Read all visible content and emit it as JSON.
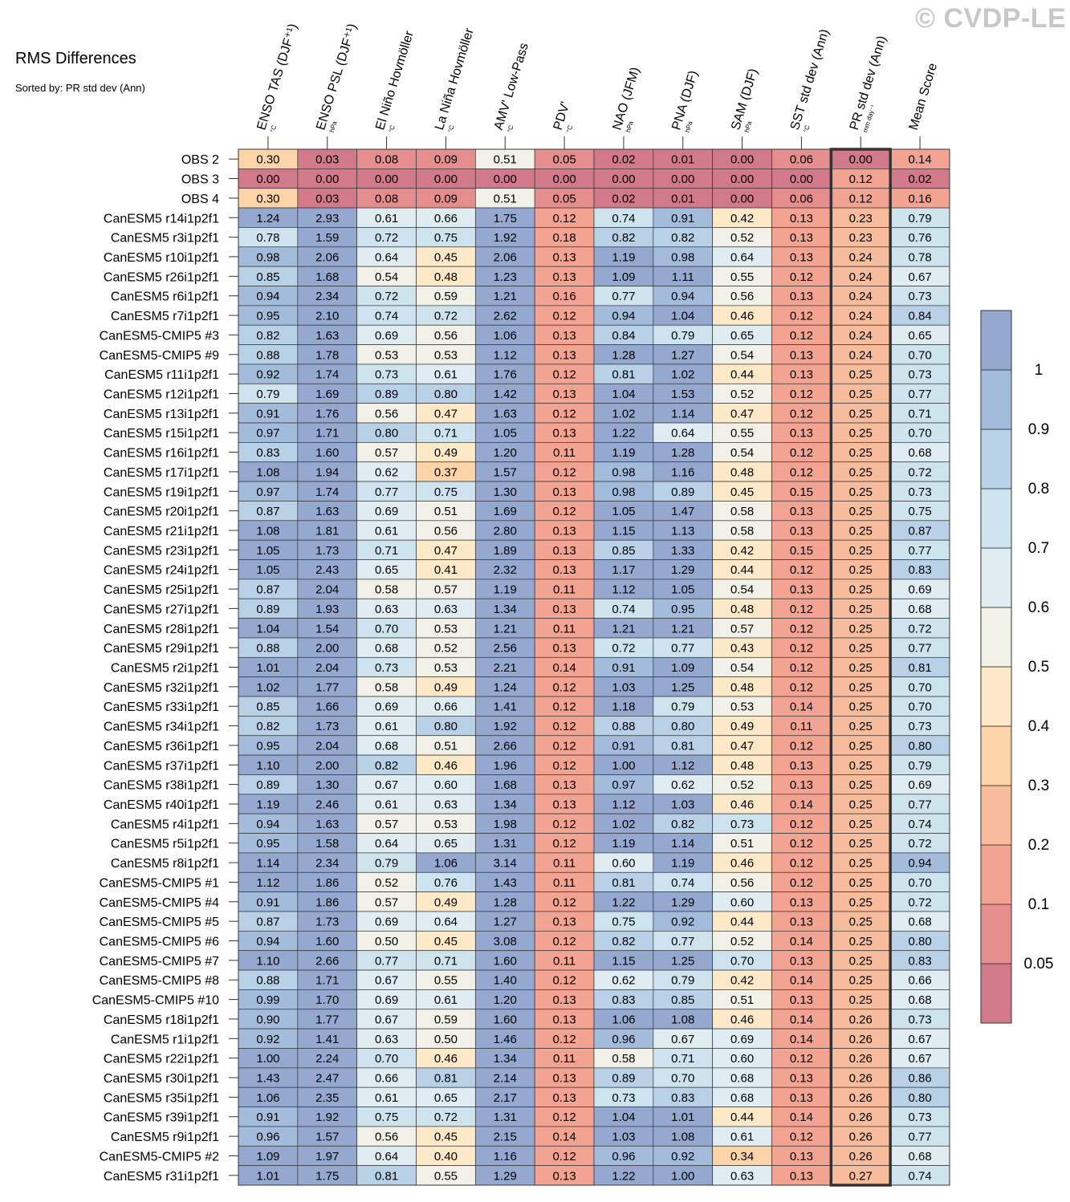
{
  "watermark": "© CVDP-LE",
  "title": "RMS Differences",
  "subtitle": "Sorted by: PR std dev (Ann)",
  "chart_data": {
    "type": "heatmap",
    "columns": [
      {
        "label": "ENSO TAS (DJF⁺¹)",
        "unit": "°C"
      },
      {
        "label": "ENSO PSL (DJF⁺¹)",
        "unit": "hPa"
      },
      {
        "label": "El Niño Hovmöller",
        "unit": "°C"
      },
      {
        "label": "La Niña Hovmöller",
        "unit": "°C"
      },
      {
        "label": "AMV' Low-Pass",
        "unit": "°C"
      },
      {
        "label": "PDV'",
        "unit": "°C"
      },
      {
        "label": "NAO (JFM)",
        "unit": "hPa"
      },
      {
        "label": "PNA (DJF)",
        "unit": "hPa"
      },
      {
        "label": "SAM (DJF)",
        "unit": "hPa"
      },
      {
        "label": "SST std dev (Ann)",
        "unit": "°C"
      },
      {
        "label": "PR std dev (Ann)",
        "unit": "mm day⁻¹"
      },
      {
        "label": "Mean Score",
        "unit": ""
      }
    ],
    "highlight_column": 10,
    "rows": [
      {
        "name": "OBS 2",
        "values": [
          "0.30",
          "0.03",
          "0.08",
          "0.09",
          "0.51",
          "0.05",
          "0.02",
          "0.01",
          "0.00",
          "0.06",
          "0.00",
          "0.14"
        ]
      },
      {
        "name": "OBS 3",
        "values": [
          "0.00",
          "0.00",
          "0.00",
          "0.00",
          "0.00",
          "0.00",
          "0.00",
          "0.00",
          "0.00",
          "0.00",
          "0.12",
          "0.02"
        ]
      },
      {
        "name": "OBS 4",
        "values": [
          "0.30",
          "0.03",
          "0.08",
          "0.09",
          "0.51",
          "0.05",
          "0.02",
          "0.01",
          "0.00",
          "0.06",
          "0.12",
          "0.16"
        ]
      },
      {
        "name": "CanESM5 r14i1p2f1",
        "values": [
          "1.24",
          "2.93",
          "0.61",
          "0.66",
          "1.75",
          "0.12",
          "0.74",
          "0.91",
          "0.42",
          "0.13",
          "0.23",
          "0.79"
        ]
      },
      {
        "name": "CanESM5 r3i1p2f1",
        "values": [
          "0.78",
          "1.59",
          "0.72",
          "0.75",
          "1.92",
          "0.18",
          "0.82",
          "0.82",
          "0.52",
          "0.13",
          "0.23",
          "0.76"
        ]
      },
      {
        "name": "CanESM5 r10i1p2f1",
        "values": [
          "0.98",
          "2.06",
          "0.64",
          "0.45",
          "2.06",
          "0.13",
          "1.19",
          "0.98",
          "0.64",
          "0.13",
          "0.24",
          "0.78"
        ]
      },
      {
        "name": "CanESM5 r26i1p2f1",
        "values": [
          "0.85",
          "1.68",
          "0.54",
          "0.48",
          "1.23",
          "0.13",
          "1.09",
          "1.11",
          "0.55",
          "0.12",
          "0.24",
          "0.67"
        ]
      },
      {
        "name": "CanESM5 r6i1p2f1",
        "values": [
          "0.94",
          "2.34",
          "0.72",
          "0.59",
          "1.21",
          "0.16",
          "0.77",
          "0.94",
          "0.56",
          "0.13",
          "0.24",
          "0.73"
        ]
      },
      {
        "name": "CanESM5 r7i1p2f1",
        "values": [
          "0.95",
          "2.10",
          "0.74",
          "0.72",
          "2.62",
          "0.12",
          "0.94",
          "1.04",
          "0.46",
          "0.12",
          "0.24",
          "0.84"
        ]
      },
      {
        "name": "CanESM5-CMIP5 #3",
        "values": [
          "0.82",
          "1.63",
          "0.69",
          "0.56",
          "1.06",
          "0.13",
          "0.84",
          "0.79",
          "0.65",
          "0.12",
          "0.24",
          "0.65"
        ]
      },
      {
        "name": "CanESM5-CMIP5 #9",
        "values": [
          "0.88",
          "1.78",
          "0.53",
          "0.53",
          "1.12",
          "0.13",
          "1.28",
          "1.27",
          "0.54",
          "0.13",
          "0.24",
          "0.70"
        ]
      },
      {
        "name": "CanESM5 r11i1p2f1",
        "values": [
          "0.92",
          "1.74",
          "0.73",
          "0.61",
          "1.76",
          "0.12",
          "0.81",
          "1.02",
          "0.44",
          "0.13",
          "0.25",
          "0.73"
        ]
      },
      {
        "name": "CanESM5 r12i1p2f1",
        "values": [
          "0.79",
          "1.69",
          "0.89",
          "0.80",
          "1.42",
          "0.13",
          "1.04",
          "1.53",
          "0.52",
          "0.12",
          "0.25",
          "0.77"
        ]
      },
      {
        "name": "CanESM5 r13i1p2f1",
        "values": [
          "0.91",
          "1.76",
          "0.56",
          "0.47",
          "1.63",
          "0.12",
          "1.02",
          "1.14",
          "0.47",
          "0.12",
          "0.25",
          "0.71"
        ]
      },
      {
        "name": "CanESM5 r15i1p2f1",
        "values": [
          "0.97",
          "1.71",
          "0.80",
          "0.71",
          "1.05",
          "0.13",
          "1.22",
          "0.64",
          "0.55",
          "0.13",
          "0.25",
          "0.70"
        ]
      },
      {
        "name": "CanESM5 r16i1p2f1",
        "values": [
          "0.83",
          "1.60",
          "0.57",
          "0.49",
          "1.20",
          "0.11",
          "1.19",
          "1.28",
          "0.54",
          "0.12",
          "0.25",
          "0.68"
        ]
      },
      {
        "name": "CanESM5 r17i1p2f1",
        "values": [
          "1.08",
          "1.94",
          "0.62",
          "0.37",
          "1.57",
          "0.12",
          "0.98",
          "1.16",
          "0.48",
          "0.12",
          "0.25",
          "0.72"
        ]
      },
      {
        "name": "CanESM5 r19i1p2f1",
        "values": [
          "0.97",
          "1.74",
          "0.77",
          "0.75",
          "1.30",
          "0.13",
          "0.98",
          "0.89",
          "0.45",
          "0.15",
          "0.25",
          "0.73"
        ]
      },
      {
        "name": "CanESM5 r20i1p2f1",
        "values": [
          "0.87",
          "1.63",
          "0.69",
          "0.51",
          "1.69",
          "0.12",
          "1.05",
          "1.47",
          "0.58",
          "0.13",
          "0.25",
          "0.75"
        ]
      },
      {
        "name": "CanESM5 r21i1p2f1",
        "values": [
          "1.08",
          "1.81",
          "0.61",
          "0.56",
          "2.80",
          "0.13",
          "1.15",
          "1.13",
          "0.58",
          "0.13",
          "0.25",
          "0.87"
        ]
      },
      {
        "name": "CanESM5 r23i1p2f1",
        "values": [
          "1.05",
          "1.73",
          "0.71",
          "0.47",
          "1.89",
          "0.13",
          "0.85",
          "1.33",
          "0.42",
          "0.15",
          "0.25",
          "0.77"
        ]
      },
      {
        "name": "CanESM5 r24i1p2f1",
        "values": [
          "1.05",
          "2.43",
          "0.65",
          "0.41",
          "2.32",
          "0.13",
          "1.17",
          "1.29",
          "0.44",
          "0.12",
          "0.25",
          "0.83"
        ]
      },
      {
        "name": "CanESM5 r25i1p2f1",
        "values": [
          "0.87",
          "2.04",
          "0.58",
          "0.57",
          "1.19",
          "0.11",
          "1.12",
          "1.05",
          "0.54",
          "0.13",
          "0.25",
          "0.69"
        ]
      },
      {
        "name": "CanESM5 r27i1p2f1",
        "values": [
          "0.89",
          "1.93",
          "0.63",
          "0.63",
          "1.34",
          "0.13",
          "0.74",
          "0.95",
          "0.48",
          "0.12",
          "0.25",
          "0.68"
        ]
      },
      {
        "name": "CanESM5 r28i1p2f1",
        "values": [
          "1.04",
          "1.54",
          "0.70",
          "0.53",
          "1.21",
          "0.11",
          "1.21",
          "1.21",
          "0.57",
          "0.12",
          "0.25",
          "0.72"
        ]
      },
      {
        "name": "CanESM5 r29i1p2f1",
        "values": [
          "0.88",
          "2.00",
          "0.68",
          "0.52",
          "2.56",
          "0.13",
          "0.72",
          "0.77",
          "0.43",
          "0.12",
          "0.25",
          "0.77"
        ]
      },
      {
        "name": "CanESM5 r2i1p2f1",
        "values": [
          "1.01",
          "2.04",
          "0.73",
          "0.53",
          "2.21",
          "0.14",
          "0.91",
          "1.09",
          "0.54",
          "0.12",
          "0.25",
          "0.81"
        ]
      },
      {
        "name": "CanESM5 r32i1p2f1",
        "values": [
          "1.02",
          "1.77",
          "0.58",
          "0.49",
          "1.24",
          "0.12",
          "1.03",
          "1.25",
          "0.48",
          "0.12",
          "0.25",
          "0.70"
        ]
      },
      {
        "name": "CanESM5 r33i1p2f1",
        "values": [
          "0.85",
          "1.66",
          "0.69",
          "0.66",
          "1.41",
          "0.12",
          "1.18",
          "0.79",
          "0.53",
          "0.14",
          "0.25",
          "0.70"
        ]
      },
      {
        "name": "CanESM5 r34i1p2f1",
        "values": [
          "0.82",
          "1.73",
          "0.61",
          "0.80",
          "1.92",
          "0.12",
          "0.88",
          "0.80",
          "0.49",
          "0.11",
          "0.25",
          "0.73"
        ]
      },
      {
        "name": "CanESM5 r36i1p2f1",
        "values": [
          "0.95",
          "2.04",
          "0.68",
          "0.51",
          "2.66",
          "0.12",
          "0.91",
          "0.81",
          "0.47",
          "0.12",
          "0.25",
          "0.80"
        ]
      },
      {
        "name": "CanESM5 r37i1p2f1",
        "values": [
          "1.10",
          "2.00",
          "0.82",
          "0.46",
          "1.96",
          "0.12",
          "1.00",
          "1.12",
          "0.48",
          "0.13",
          "0.25",
          "0.79"
        ]
      },
      {
        "name": "CanESM5 r38i1p2f1",
        "values": [
          "0.89",
          "1.30",
          "0.67",
          "0.60",
          "1.68",
          "0.13",
          "0.97",
          "0.62",
          "0.52",
          "0.13",
          "0.25",
          "0.69"
        ]
      },
      {
        "name": "CanESM5 r40i1p2f1",
        "values": [
          "1.19",
          "2.46",
          "0.61",
          "0.63",
          "1.34",
          "0.13",
          "1.12",
          "1.03",
          "0.46",
          "0.14",
          "0.25",
          "0.77"
        ]
      },
      {
        "name": "CanESM5 r4i1p2f1",
        "values": [
          "0.94",
          "1.63",
          "0.57",
          "0.53",
          "1.98",
          "0.12",
          "1.02",
          "0.82",
          "0.73",
          "0.12",
          "0.25",
          "0.74"
        ]
      },
      {
        "name": "CanESM5 r5i1p2f1",
        "values": [
          "0.95",
          "1.58",
          "0.64",
          "0.65",
          "1.31",
          "0.12",
          "1.19",
          "1.14",
          "0.51",
          "0.12",
          "0.25",
          "0.72"
        ]
      },
      {
        "name": "CanESM5 r8i1p2f1",
        "values": [
          "1.14",
          "2.34",
          "0.79",
          "1.06",
          "3.14",
          "0.11",
          "0.60",
          "1.19",
          "0.46",
          "0.12",
          "0.25",
          "0.94"
        ]
      },
      {
        "name": "CanESM5-CMIP5 #1",
        "values": [
          "1.12",
          "1.86",
          "0.52",
          "0.76",
          "1.43",
          "0.11",
          "0.81",
          "0.74",
          "0.56",
          "0.12",
          "0.25",
          "0.70"
        ]
      },
      {
        "name": "CanESM5-CMIP5 #4",
        "values": [
          "0.91",
          "1.86",
          "0.57",
          "0.49",
          "1.28",
          "0.12",
          "1.22",
          "1.29",
          "0.60",
          "0.13",
          "0.25",
          "0.72"
        ]
      },
      {
        "name": "CanESM5-CMIP5 #5",
        "values": [
          "0.87",
          "1.73",
          "0.69",
          "0.64",
          "1.27",
          "0.13",
          "0.75",
          "0.92",
          "0.44",
          "0.13",
          "0.25",
          "0.68"
        ]
      },
      {
        "name": "CanESM5-CMIP5 #6",
        "values": [
          "0.94",
          "1.60",
          "0.50",
          "0.45",
          "3.08",
          "0.12",
          "0.82",
          "0.77",
          "0.52",
          "0.14",
          "0.25",
          "0.80"
        ]
      },
      {
        "name": "CanESM5-CMIP5 #7",
        "values": [
          "1.10",
          "2.66",
          "0.77",
          "0.71",
          "1.60",
          "0.11",
          "1.15",
          "1.25",
          "0.70",
          "0.13",
          "0.25",
          "0.83"
        ]
      },
      {
        "name": "CanESM5-CMIP5 #8",
        "values": [
          "0.88",
          "1.71",
          "0.67",
          "0.55",
          "1.40",
          "0.12",
          "0.62",
          "0.79",
          "0.42",
          "0.14",
          "0.25",
          "0.66"
        ]
      },
      {
        "name": "CanESM5-CMIP5 #10",
        "values": [
          "0.99",
          "1.70",
          "0.69",
          "0.61",
          "1.20",
          "0.13",
          "0.83",
          "0.85",
          "0.51",
          "0.13",
          "0.25",
          "0.68"
        ]
      },
      {
        "name": "CanESM5 r18i1p2f1",
        "values": [
          "0.90",
          "1.77",
          "0.67",
          "0.59",
          "1.60",
          "0.13",
          "1.06",
          "1.08",
          "0.46",
          "0.14",
          "0.26",
          "0.73"
        ]
      },
      {
        "name": "CanESM5 r1i1p2f1",
        "values": [
          "0.92",
          "1.41",
          "0.63",
          "0.50",
          "1.46",
          "0.12",
          "0.96",
          "0.67",
          "0.69",
          "0.14",
          "0.26",
          "0.67"
        ]
      },
      {
        "name": "CanESM5 r22i1p2f1",
        "values": [
          "1.00",
          "2.24",
          "0.70",
          "0.46",
          "1.34",
          "0.11",
          "0.58",
          "0.71",
          "0.60",
          "0.12",
          "0.26",
          "0.67"
        ]
      },
      {
        "name": "CanESM5 r30i1p2f1",
        "values": [
          "1.43",
          "2.47",
          "0.66",
          "0.81",
          "2.14",
          "0.13",
          "0.89",
          "0.70",
          "0.68",
          "0.13",
          "0.26",
          "0.86"
        ]
      },
      {
        "name": "CanESM5 r35i1p2f1",
        "values": [
          "1.06",
          "2.35",
          "0.61",
          "0.65",
          "2.17",
          "0.13",
          "0.73",
          "0.83",
          "0.68",
          "0.13",
          "0.26",
          "0.80"
        ]
      },
      {
        "name": "CanESM5 r39i1p2f1",
        "values": [
          "0.91",
          "1.92",
          "0.75",
          "0.72",
          "1.31",
          "0.12",
          "1.04",
          "1.01",
          "0.44",
          "0.14",
          "0.26",
          "0.73"
        ]
      },
      {
        "name": "CanESM5 r9i1p2f1",
        "values": [
          "0.96",
          "1.57",
          "0.56",
          "0.45",
          "2.15",
          "0.14",
          "1.03",
          "1.08",
          "0.61",
          "0.12",
          "0.26",
          "0.77"
        ]
      },
      {
        "name": "CanESM5-CMIP5 #2",
        "values": [
          "1.09",
          "1.97",
          "0.64",
          "0.40",
          "1.16",
          "0.12",
          "0.96",
          "0.92",
          "0.34",
          "0.13",
          "0.26",
          "0.68"
        ]
      },
      {
        "name": "CanESM5 r31i1p2f1",
        "values": [
          "1.01",
          "1.75",
          "0.81",
          "0.55",
          "1.29",
          "0.13",
          "1.22",
          "1.00",
          "0.63",
          "0.13",
          "0.27",
          "0.74"
        ]
      }
    ],
    "colorbar": {
      "boundaries": [
        0.05,
        0.1,
        0.2,
        0.3,
        0.4,
        0.5,
        0.6,
        0.7,
        0.8,
        0.9,
        1
      ],
      "tick_labels": [
        "1",
        "0.9",
        "0.8",
        "0.7",
        "0.6",
        "0.5",
        "0.4",
        "0.3",
        "0.2",
        "0.1",
        "0.05"
      ],
      "colors": [
        "#d27a8a",
        "#e68e8e",
        "#f2a391",
        "#f7bc9c",
        "#fcd4a8",
        "#fde9c7",
        "#f1f1e7",
        "#dfedf3",
        "#cde4ef",
        "#b8d1e6",
        "#a3bcdc",
        "#94a8d0"
      ]
    }
  }
}
